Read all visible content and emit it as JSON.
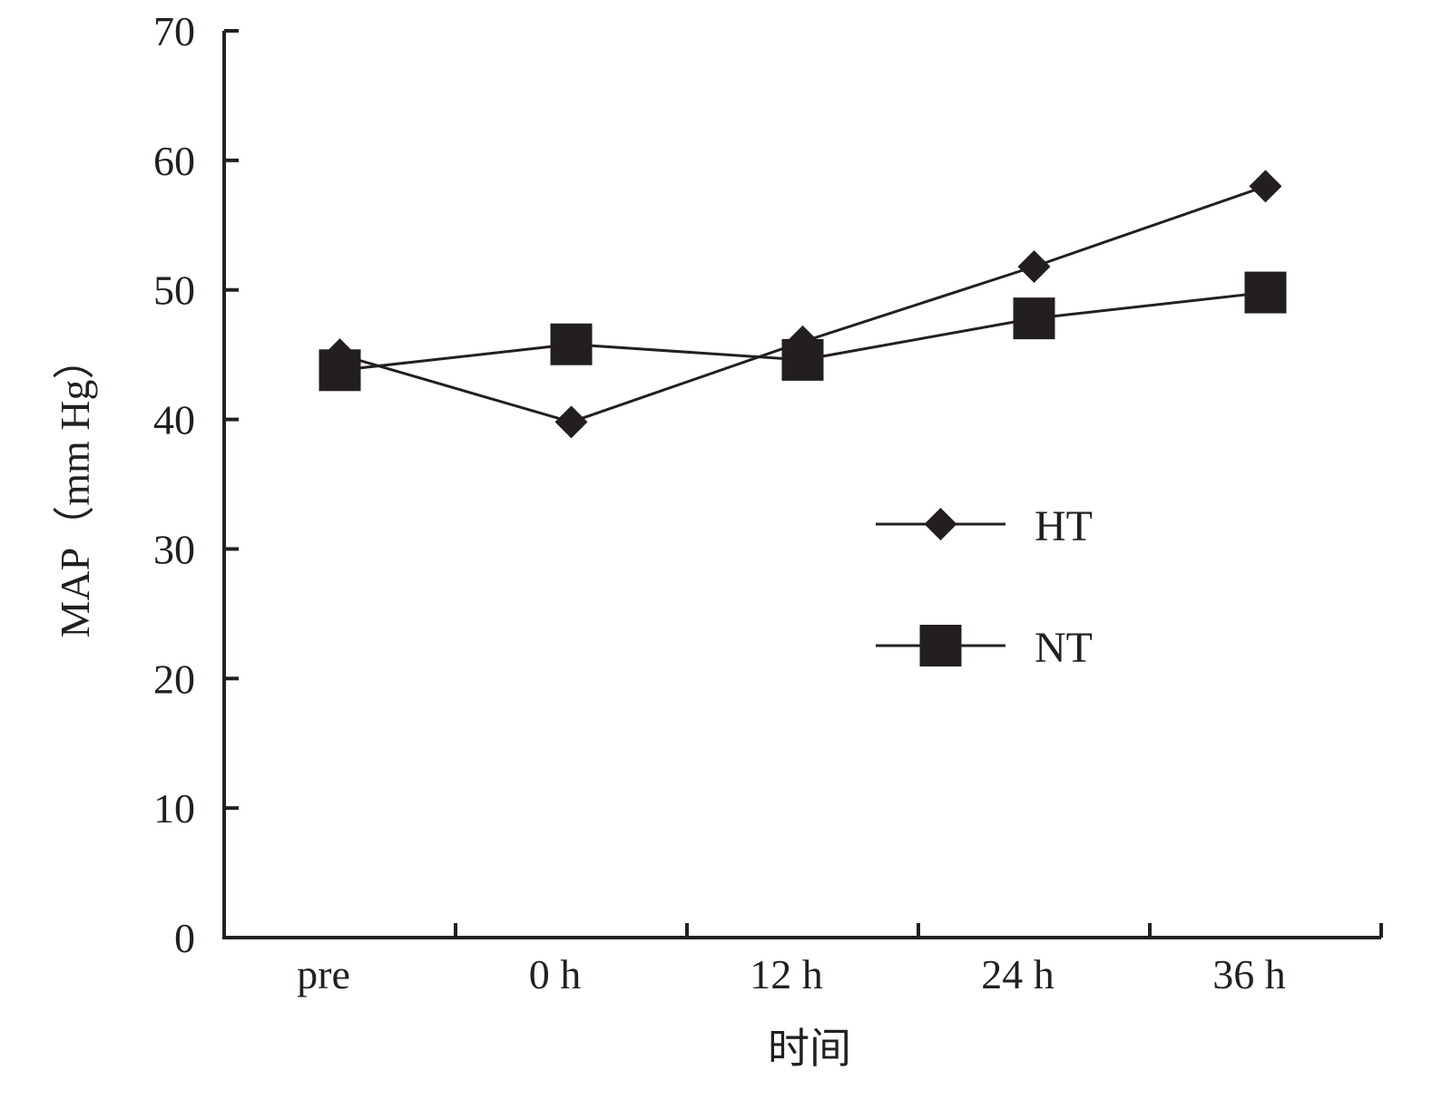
{
  "chart_data": {
    "type": "line",
    "title": "",
    "xlabel": "时间",
    "ylabel": "MAP（mm Hg）",
    "categories": [
      "pre",
      "0 h",
      "12 h",
      "24 h",
      "36 h"
    ],
    "ylim": [
      0,
      70
    ],
    "yticks": [
      0,
      10,
      20,
      30,
      40,
      50,
      60,
      70
    ],
    "grid": false,
    "legend_position": "center-right",
    "series": [
      {
        "name": "HT",
        "marker": "diamond",
        "values": [
          45,
          39.8,
          46,
          51.8,
          58
        ],
        "color": "#231f20"
      },
      {
        "name": "NT",
        "marker": "square",
        "values": [
          43.8,
          45.8,
          44.6,
          47.8,
          49.8
        ],
        "color": "#231f20"
      }
    ]
  }
}
